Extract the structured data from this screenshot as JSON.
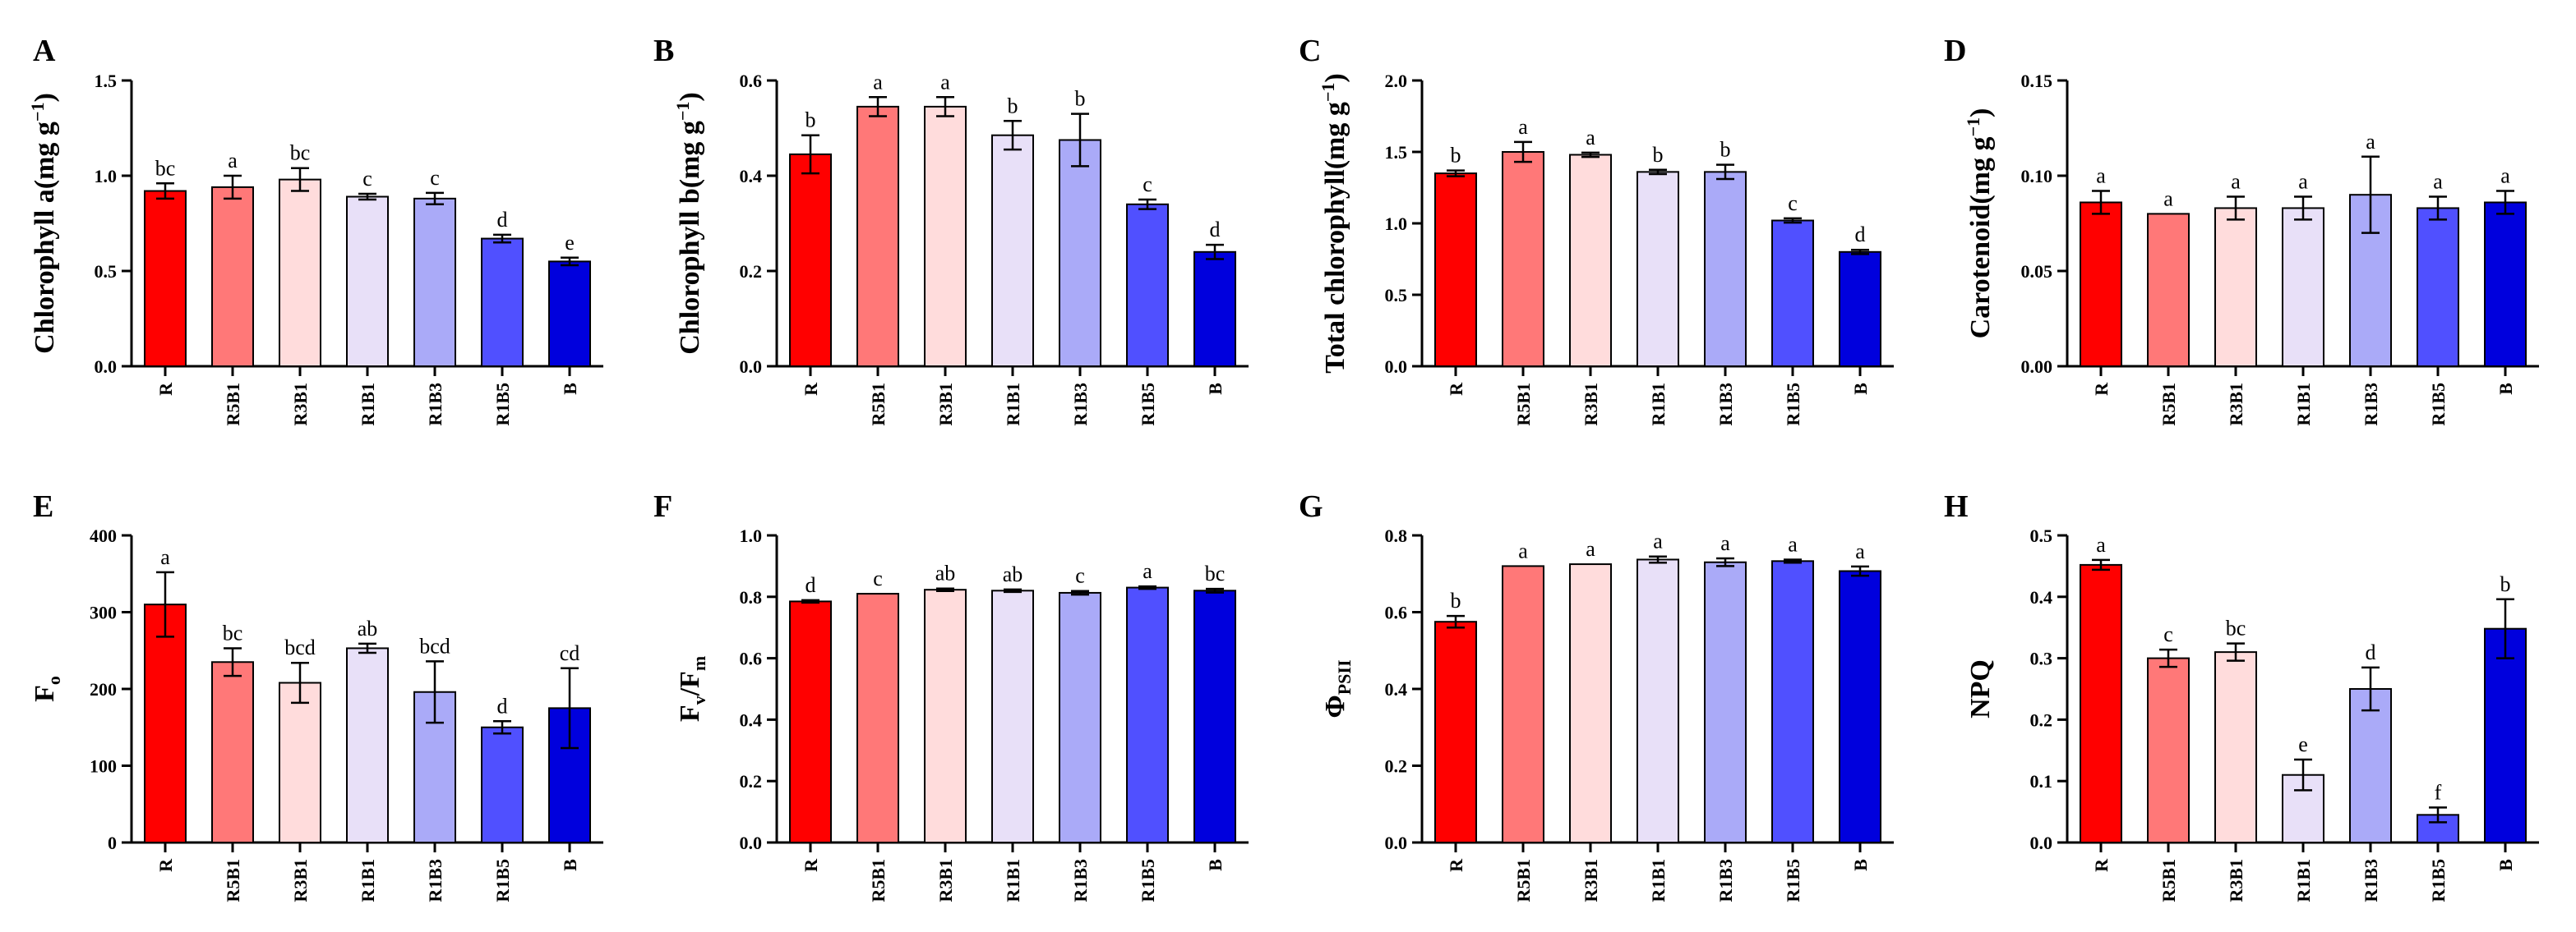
{
  "figure": {
    "panel_letters": [
      "A",
      "B",
      "C",
      "D",
      "E",
      "F",
      "G",
      "H"
    ]
  },
  "colors": {
    "R": "#ff0000",
    "R5B1": "#ff7878",
    "R3B1": "#ffdcdc",
    "R1B1": "#e8e0f8",
    "R1B3": "#aaaaf8",
    "R1B5": "#5050ff",
    "B": "#0000dd",
    "axis": "#000000"
  },
  "chart_data": [
    {
      "type": "bar",
      "panel": "A",
      "ylabel": "Chlorophyll a(mg g",
      "ylabel_sup": "−1",
      "ylabel_tail": ")",
      "categories": [
        "R",
        "R5B1",
        "R3B1",
        "R1B1",
        "R1B3",
        "R1B5",
        "B"
      ],
      "values": [
        0.92,
        0.94,
        0.98,
        0.89,
        0.88,
        0.67,
        0.55
      ],
      "errors": [
        0.04,
        0.06,
        0.06,
        0.015,
        0.03,
        0.02,
        0.02
      ],
      "letters": [
        "bc",
        "a",
        "bc",
        "c",
        "c",
        "d",
        "e"
      ],
      "ylim": [
        0,
        1.5
      ],
      "ticks": [
        0.0,
        0.5,
        1.0,
        1.5
      ],
      "tick_labels": [
        "0.0",
        "0.5",
        "1.0",
        "1.5"
      ]
    },
    {
      "type": "bar",
      "panel": "B",
      "ylabel": "Chlorophyll b(mg g",
      "ylabel_sup": "−1",
      "ylabel_tail": ")",
      "categories": [
        "R",
        "R5B1",
        "R3B1",
        "R1B1",
        "R1B3",
        "R1B5",
        "B"
      ],
      "values": [
        0.445,
        0.545,
        0.545,
        0.485,
        0.475,
        0.34,
        0.24
      ],
      "errors": [
        0.04,
        0.02,
        0.02,
        0.03,
        0.055,
        0.01,
        0.015
      ],
      "letters": [
        "b",
        "a",
        "a",
        "b",
        "b",
        "c",
        "d"
      ],
      "ylim": [
        0,
        0.6
      ],
      "ticks": [
        0.0,
        0.2,
        0.4,
        0.6
      ],
      "tick_labels": [
        "0.0",
        "0.2",
        "0.4",
        "0.6"
      ]
    },
    {
      "type": "bar",
      "panel": "C",
      "ylabel": "Total chlorophyll(mg g",
      "ylabel_sup": "−1",
      "ylabel_tail": ")",
      "categories": [
        "R",
        "R5B1",
        "R3B1",
        "R1B1",
        "R1B3",
        "R1B5",
        "B"
      ],
      "values": [
        1.35,
        1.5,
        1.48,
        1.36,
        1.36,
        1.02,
        0.8
      ],
      "errors": [
        0.02,
        0.07,
        0.015,
        0.015,
        0.05,
        0.015,
        0.015
      ],
      "letters": [
        "b",
        "a",
        "a",
        "b",
        "b",
        "c",
        "d"
      ],
      "ylim": [
        0,
        2.0
      ],
      "ticks": [
        0.0,
        0.5,
        1.0,
        1.5,
        2.0
      ],
      "tick_labels": [
        "0.0",
        "0.5",
        "1.0",
        "1.5",
        "2.0"
      ]
    },
    {
      "type": "bar",
      "panel": "D",
      "ylabel": "Carotenoid(mg g",
      "ylabel_sup": "−1",
      "ylabel_tail": ")",
      "categories": [
        "R",
        "R5B1",
        "R3B1",
        "R1B1",
        "R1B3",
        "R1B5",
        "B"
      ],
      "values": [
        0.086,
        0.08,
        0.083,
        0.083,
        0.09,
        0.083,
        0.086
      ],
      "errors": [
        0.006,
        0.0,
        0.006,
        0.006,
        0.02,
        0.006,
        0.006
      ],
      "letters": [
        "a",
        "a",
        "a",
        "a",
        "a",
        "a",
        "a"
      ],
      "ylim": [
        0,
        0.15
      ],
      "ticks": [
        0.0,
        0.05,
        0.1,
        0.15
      ],
      "tick_labels": [
        "0.00",
        "0.05",
        "0.10",
        "0.15"
      ]
    },
    {
      "type": "bar",
      "panel": "E",
      "ylabel": "F",
      "ylabel_sub": "o",
      "ylabel_mid": "",
      "ylabel_sub2": "",
      "categories": [
        "R",
        "R5B1",
        "R3B1",
        "R1B1",
        "R1B3",
        "R1B5",
        "B"
      ],
      "values": [
        310,
        235,
        208,
        253,
        196,
        150,
        175
      ],
      "errors": [
        42,
        18,
        26,
        6,
        40,
        8,
        52
      ],
      "letters": [
        "a",
        "bc",
        "bcd",
        "ab",
        "bcd",
        "d",
        "cd"
      ],
      "ylim": [
        0,
        400
      ],
      "ticks": [
        0,
        100,
        200,
        300,
        400
      ],
      "tick_labels": [
        "0",
        "100",
        "200",
        "300",
        "400"
      ]
    },
    {
      "type": "bar",
      "panel": "F",
      "ylabel": "F",
      "ylabel_sub": "v",
      "ylabel_mid": "/F",
      "ylabel_sub2": "m",
      "categories": [
        "R",
        "R5B1",
        "R3B1",
        "R1B1",
        "R1B3",
        "R1B5",
        "B"
      ],
      "values": [
        0.785,
        0.81,
        0.823,
        0.82,
        0.813,
        0.83,
        0.82
      ],
      "errors": [
        0.004,
        0.0,
        0.004,
        0.004,
        0.006,
        0.004,
        0.006
      ],
      "letters": [
        "d",
        "c",
        "ab",
        "ab",
        "c",
        "a",
        "bc"
      ],
      "ylim": [
        0,
        1.0
      ],
      "ticks": [
        0.0,
        0.2,
        0.4,
        0.6,
        0.8,
        1.0
      ],
      "tick_labels": [
        "0.0",
        "0.2",
        "0.4",
        "0.6",
        "0.8",
        "1.0"
      ]
    },
    {
      "type": "bar",
      "panel": "G",
      "ylabel": "Φ",
      "ylabel_sub": "PSII",
      "ylabel_mid": "",
      "ylabel_sub2": "",
      "categories": [
        "R",
        "R5B1",
        "R3B1",
        "R1B1",
        "R1B3",
        "R1B5",
        "B"
      ],
      "values": [
        0.575,
        0.72,
        0.725,
        0.737,
        0.73,
        0.733,
        0.707
      ],
      "errors": [
        0.015,
        0.0,
        0.0,
        0.008,
        0.01,
        0.004,
        0.012
      ],
      "letters": [
        "b",
        "a",
        "a",
        "a",
        "a",
        "a",
        "a"
      ],
      "ylim": [
        0,
        0.8
      ],
      "ticks": [
        0.0,
        0.2,
        0.4,
        0.6,
        0.8
      ],
      "tick_labels": [
        "0.0",
        "0.2",
        "0.4",
        "0.6",
        "0.8"
      ]
    },
    {
      "type": "bar",
      "panel": "H",
      "ylabel": "NPQ",
      "ylabel_sub": "",
      "ylabel_mid": "",
      "ylabel_sub2": "",
      "categories": [
        "R",
        "R5B1",
        "R3B1",
        "R1B1",
        "R1B3",
        "R1B5",
        "B"
      ],
      "values": [
        0.452,
        0.3,
        0.31,
        0.11,
        0.25,
        0.045,
        0.348
      ],
      "errors": [
        0.008,
        0.014,
        0.014,
        0.025,
        0.035,
        0.012,
        0.048
      ],
      "letters": [
        "a",
        "c",
        "bc",
        "e",
        "d",
        "f",
        "b"
      ],
      "ylim": [
        0,
        0.5
      ],
      "ticks": [
        0.0,
        0.1,
        0.2,
        0.3,
        0.4,
        0.5
      ],
      "tick_labels": [
        "0.0",
        "0.1",
        "0.2",
        "0.3",
        "0.4",
        "0.5"
      ]
    }
  ]
}
